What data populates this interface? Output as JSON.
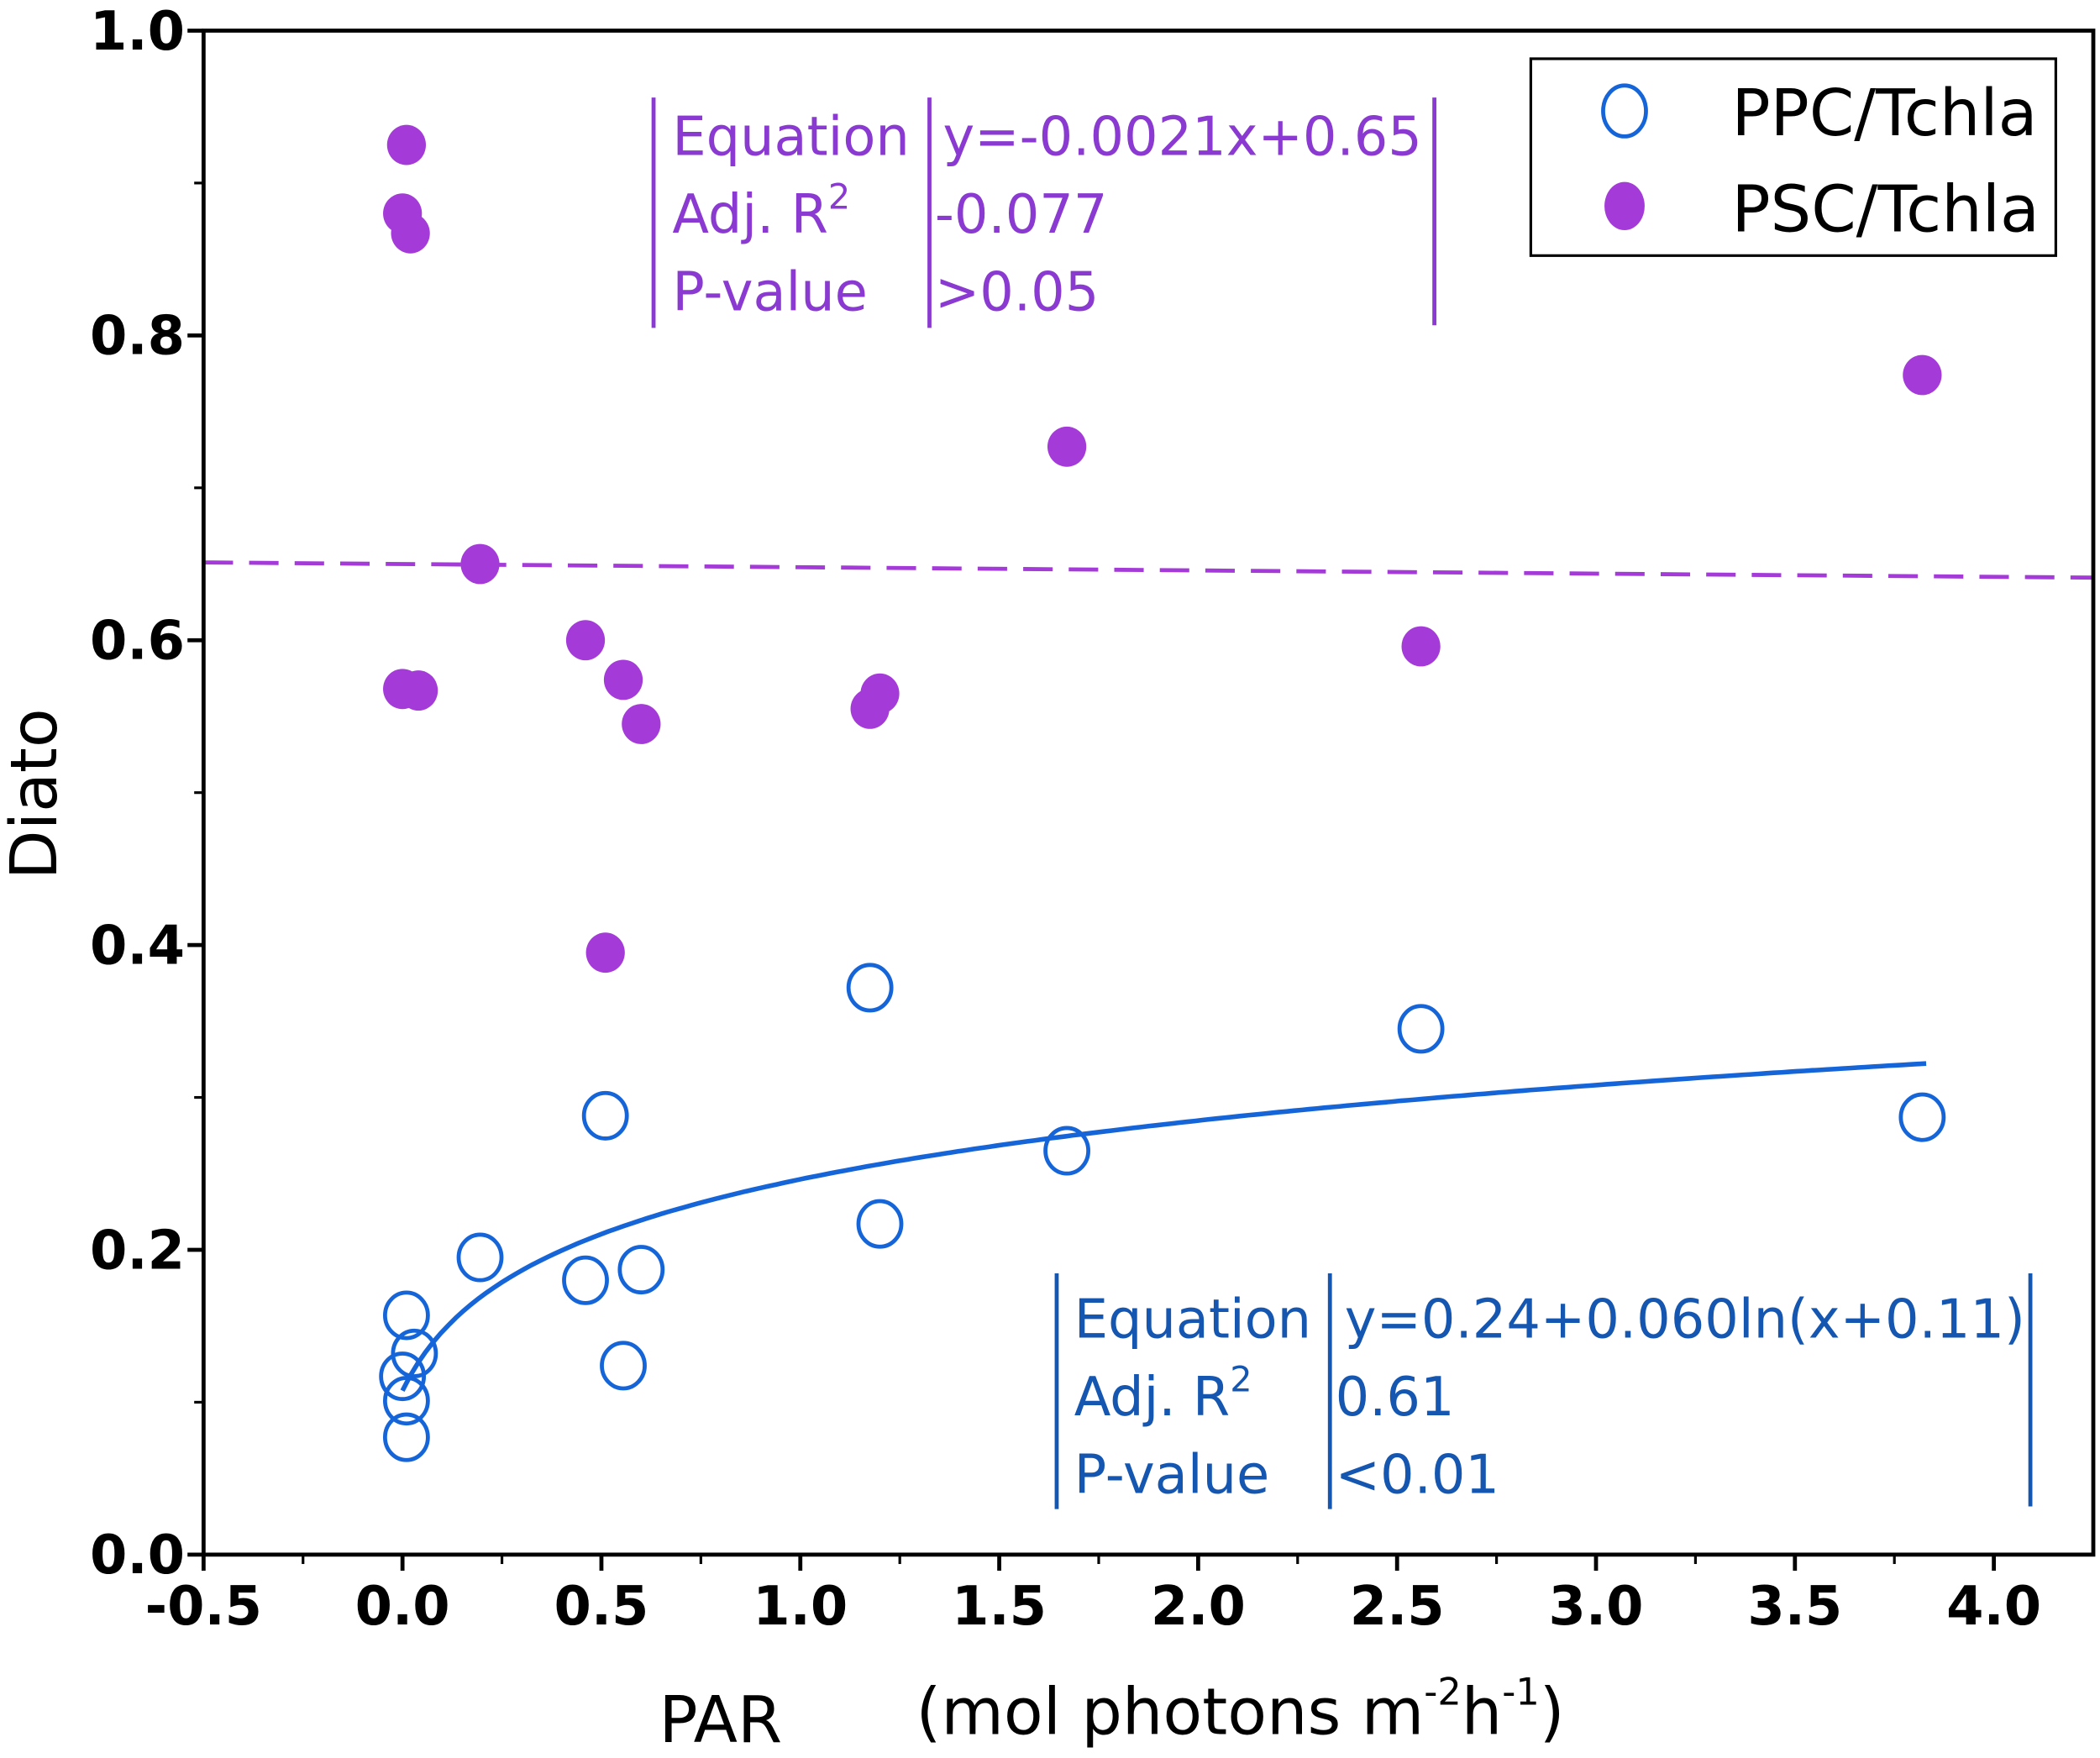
{
  "chart_data": {
    "type": "scatter",
    "title": "",
    "xlabel": "PAR",
    "xlabel_units": "(mol photons m",
    "xlabel_units_sup1": "-2",
    "xlabel_units_mid": "h",
    "xlabel_units_sup2": "-1",
    "xlabel_units_end": ")",
    "ylabel": "Diato",
    "xlim": [
      -0.5,
      4.25
    ],
    "ylim": [
      0,
      1.0
    ],
    "xticks": [
      "-0.5",
      "0.0",
      "0.5",
      "1.0",
      "1.5",
      "2.0",
      "2.5",
      "3.0",
      "3.5",
      "4.0"
    ],
    "xtick_values": [
      -0.5,
      0,
      0.5,
      1,
      1.5,
      2,
      2.5,
      3,
      3.5,
      4
    ],
    "yticks": [
      "0.0",
      "0.2",
      "0.4",
      "0.6",
      "0.8",
      "1.0"
    ],
    "ytick_values": [
      0,
      0.2,
      0.4,
      0.6,
      0.8,
      1.0
    ],
    "grid": false,
    "legend_position": "top-right",
    "series": [
      {
        "name": "PPC/Tchla",
        "marker": "open-circle",
        "color": "#1565d8",
        "x": [
          0.01,
          0.03,
          0.0,
          0.01,
          0.01,
          0.195,
          0.46,
          0.51,
          0.555,
          0.6,
          1.175,
          1.2,
          1.67,
          2.56,
          3.82
        ],
        "y": [
          0.157,
          0.132,
          0.117,
          0.101,
          0.077,
          0.195,
          0.18,
          0.288,
          0.124,
          0.187,
          0.372,
          0.217,
          0.265,
          0.345,
          0.287
        ]
      },
      {
        "name": "PSC/Tchla",
        "marker": "filled-circle",
        "color": "#a43ad8",
        "x": [
          0.01,
          0.0,
          0.02,
          0.195,
          0.0,
          0.04,
          0.46,
          0.555,
          0.6,
          0.51,
          1.175,
          1.2,
          1.67,
          2.56,
          3.82
        ],
        "y": [
          0.925,
          0.88,
          0.867,
          0.65,
          0.568,
          0.567,
          0.6,
          0.574,
          0.545,
          0.395,
          0.555,
          0.565,
          0.727,
          0.596,
          0.774
        ]
      }
    ],
    "fits": [
      {
        "series": "PSC/Tchla",
        "style": "dashed",
        "color": "#a43ad8",
        "slope": -0.0021,
        "intercept": 0.65,
        "x_range": [
          -0.5,
          4.25
        ],
        "labels": {
          "equation_label": "Equation",
          "r2_label": "Adj. R",
          "r2_sup": "2",
          "p_label": "P-value"
        },
        "values": {
          "equation": "y=-0.0021x+0.65",
          "r2": "-0.077",
          "p": ">0.05"
        }
      },
      {
        "series": "PPC/Tchla",
        "style": "solid",
        "color": "#1565d8",
        "a": 0.24,
        "b": 0.06,
        "c": 0.11,
        "x_range": [
          0.0,
          3.83
        ],
        "labels": {
          "equation_label": "Equation",
          "r2_label": "Adj. R",
          "r2_sup": "2",
          "p_label": "P-value"
        },
        "values": {
          "equation": "y=0.24+0.060ln(x+0.11)",
          "r2": "0.61",
          "p": "<0.01"
        }
      }
    ]
  }
}
